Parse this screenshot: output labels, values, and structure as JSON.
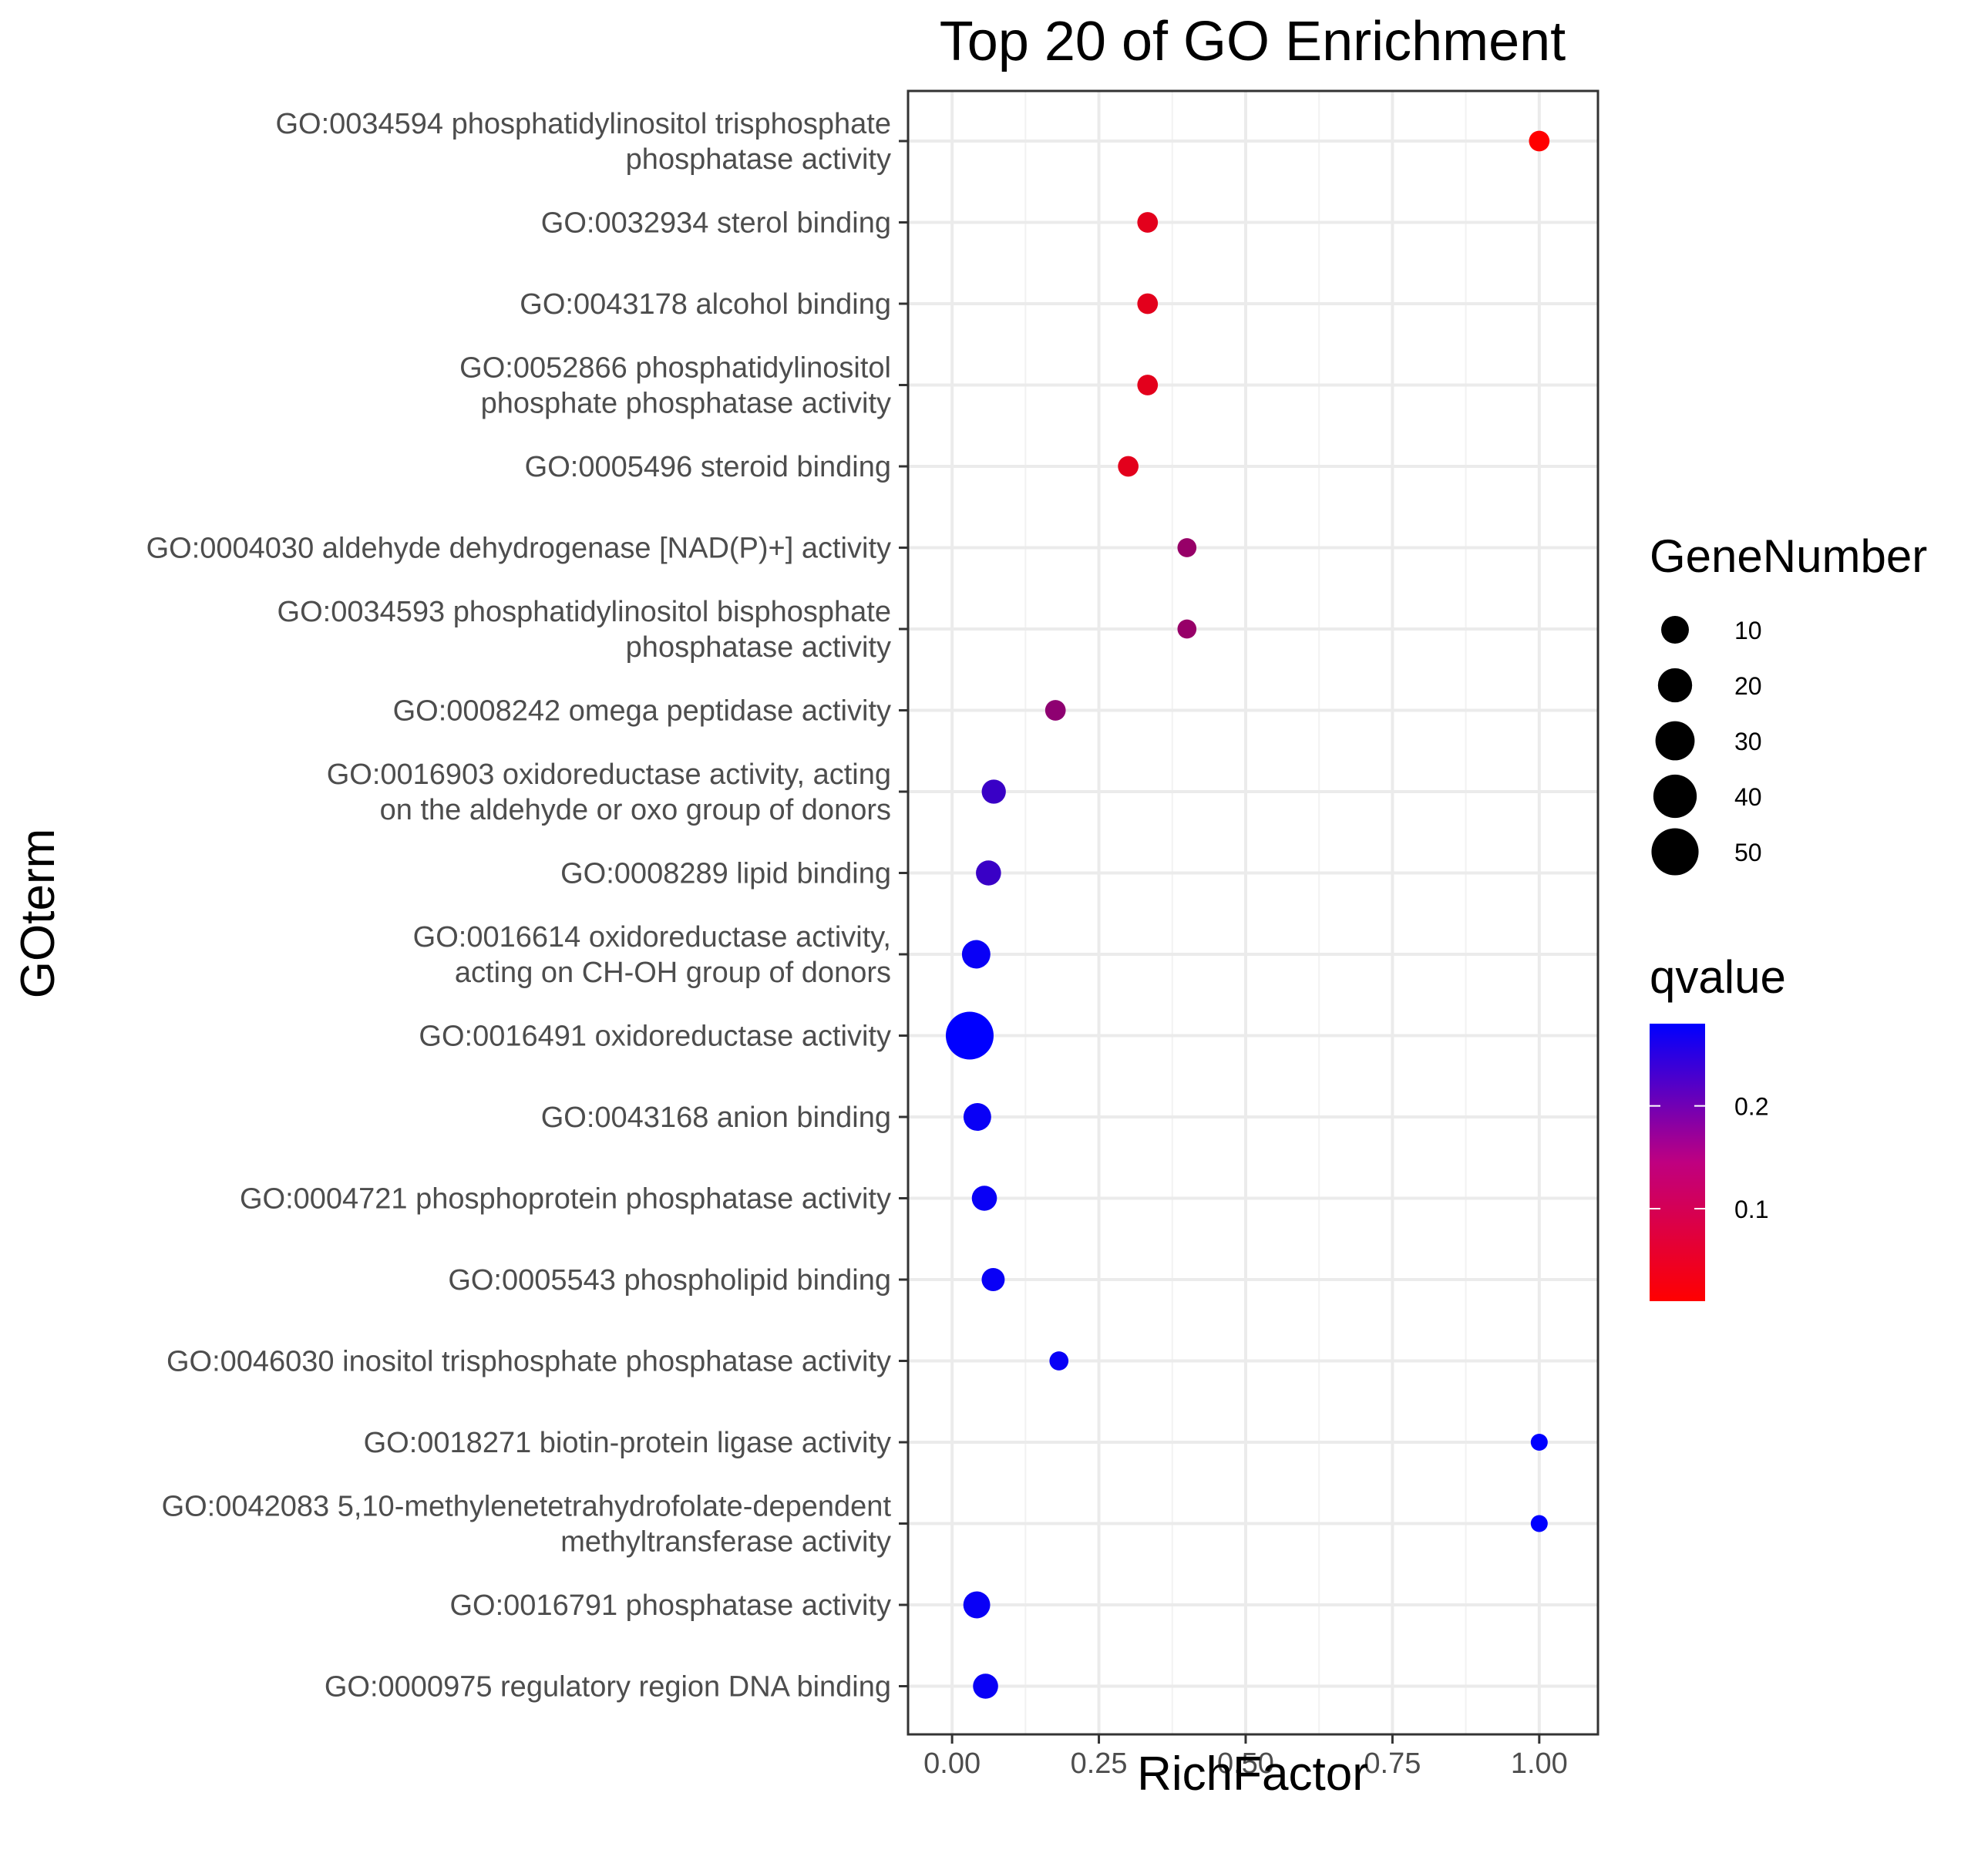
{
  "chart_data": {
    "type": "scatter",
    "title": "Top 20 of GO Enrichment",
    "xlabel": "RichFactor",
    "ylabel": "GOterm",
    "xlim": [
      -0.075,
      1.1
    ],
    "x_ticks": [
      "0.00",
      "0.25",
      "0.50",
      "0.75",
      "1.00"
    ],
    "grid": true,
    "legend_position": "right",
    "size_legend": {
      "title": "GeneNumber",
      "values": [
        10,
        20,
        30,
        40,
        50
      ],
      "labels": [
        "10",
        "20",
        "30",
        "40",
        "50"
      ]
    },
    "color_legend": {
      "title": "qvalue",
      "range": [
        0.01,
        0.28
      ],
      "tick_values": [
        0.2,
        0.1
      ],
      "tick_labels": [
        "0.2",
        "0.1"
      ],
      "low_color": "#ff0000",
      "high_color": "#0000ff"
    },
    "points": [
      {
        "term": [
          "GO:0034594 phosphatidylinositol trisphosphate",
          "phosphatase activity"
        ],
        "x": 1.0,
        "gene_number": 3,
        "qvalue": 0.01
      },
      {
        "term": [
          "GO:0032934 sterol binding"
        ],
        "x": 0.333,
        "gene_number": 3,
        "qvalue": 0.04
      },
      {
        "term": [
          "GO:0043178 alcohol binding"
        ],
        "x": 0.333,
        "gene_number": 3,
        "qvalue": 0.04
      },
      {
        "term": [
          "GO:0052866 phosphatidylinositol",
          "phosphate phosphatase activity"
        ],
        "x": 0.333,
        "gene_number": 3,
        "qvalue": 0.04
      },
      {
        "term": [
          "GO:0005496 steroid binding"
        ],
        "x": 0.3,
        "gene_number": 3,
        "qvalue": 0.04
      },
      {
        "term": [
          "GO:0004030 aldehyde dehydrogenase [NAD(P)+] activity"
        ],
        "x": 0.4,
        "gene_number": 2,
        "qvalue": 0.12
      },
      {
        "term": [
          "GO:0034593 phosphatidylinositol bisphosphate",
          "phosphatase activity"
        ],
        "x": 0.4,
        "gene_number": 2,
        "qvalue": 0.12
      },
      {
        "term": [
          "GO:0008242 omega peptidase activity"
        ],
        "x": 0.176,
        "gene_number": 3,
        "qvalue": 0.13
      },
      {
        "term": [
          "GO:0016903 oxidoreductase activity, acting",
          "on the aldehyde or oxo group of donors"
        ],
        "x": 0.071,
        "gene_number": 6,
        "qvalue": 0.22
      },
      {
        "term": [
          "GO:0008289 lipid binding"
        ],
        "x": 0.062,
        "gene_number": 7,
        "qvalue": 0.22
      },
      {
        "term": [
          "GO:0016614 oxidoreductase activity,",
          "acting on CH-OH group of donors"
        ],
        "x": 0.041,
        "gene_number": 11,
        "qvalue": 0.27
      },
      {
        "term": [
          "GO:0016491 oxidoreductase activity"
        ],
        "x": 0.03,
        "gene_number": 52,
        "qvalue": 0.28
      },
      {
        "term": [
          "GO:0043168 anion binding"
        ],
        "x": 0.043,
        "gene_number": 10,
        "qvalue": 0.27
      },
      {
        "term": [
          "GO:0004721 phosphoprotein phosphatase activity"
        ],
        "x": 0.055,
        "gene_number": 7,
        "qvalue": 0.27
      },
      {
        "term": [
          "GO:0005543 phospholipid binding"
        ],
        "x": 0.07,
        "gene_number": 5,
        "qvalue": 0.27
      },
      {
        "term": [
          "GO:0046030 inositol trisphosphate phosphatase activity"
        ],
        "x": 0.182,
        "gene_number": 2,
        "qvalue": 0.27
      },
      {
        "term": [
          "GO:0018271 biotin-protein ligase activity"
        ],
        "x": 1.0,
        "gene_number": 1,
        "qvalue": 0.28
      },
      {
        "term": [
          "GO:0042083 5,10-methylenetetrahydrofolate-dependent",
          "methyltransferase activity"
        ],
        "x": 1.0,
        "gene_number": 1,
        "qvalue": 0.28
      },
      {
        "term": [
          "GO:0016791 phosphatase activity"
        ],
        "x": 0.042,
        "gene_number": 9,
        "qvalue": 0.27
      },
      {
        "term": [
          "GO:0000975 regulatory region DNA binding"
        ],
        "x": 0.057,
        "gene_number": 7,
        "qvalue": 0.27
      }
    ]
  }
}
